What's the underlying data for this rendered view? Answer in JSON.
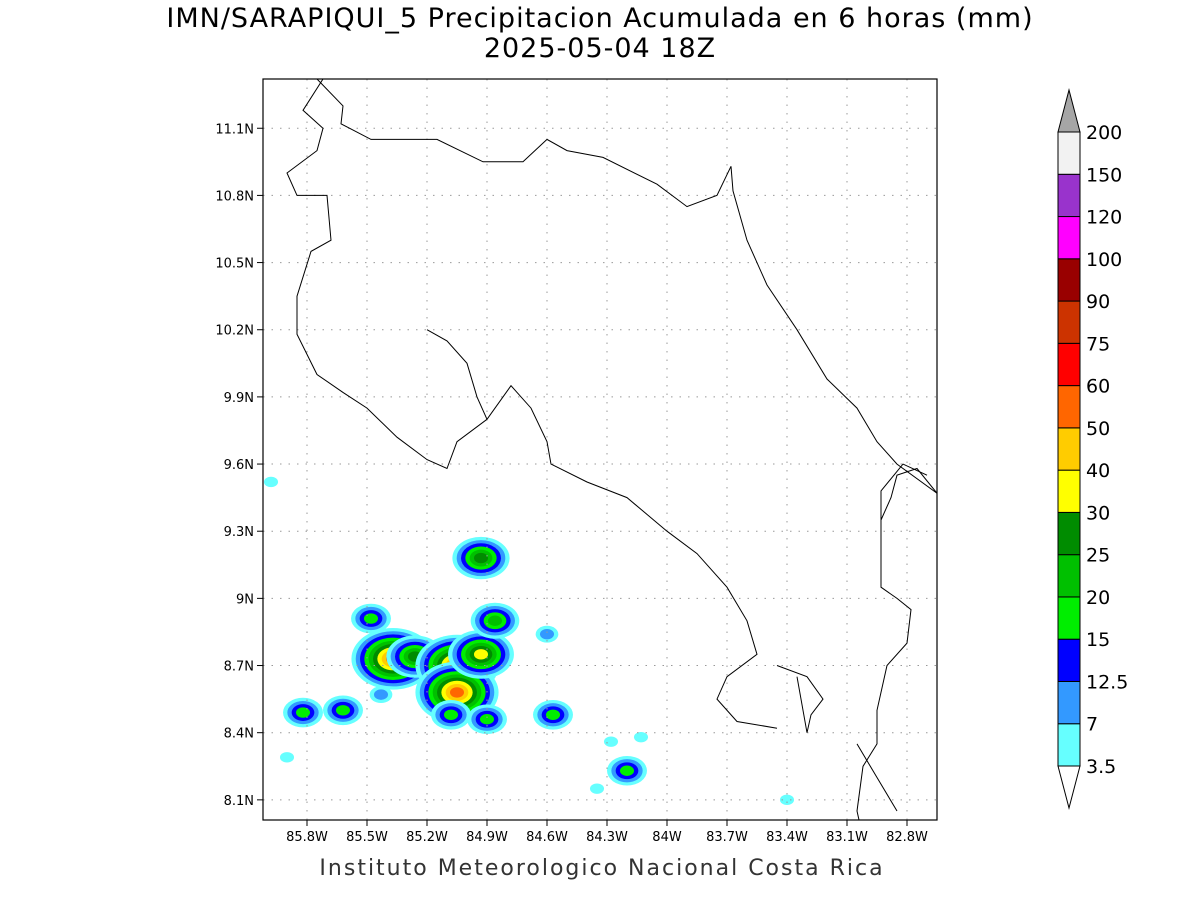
{
  "header": {
    "title": "IMN/SARAPIQUI_5 Precipitacion Acumulada en 6 horas (mm)",
    "subtitle": "2025-05-04 18Z"
  },
  "footer": {
    "credit": "Instituto Meteorologico Nacional Costa Rica"
  },
  "map": {
    "lon_range": [
      -86.02,
      -82.65
    ],
    "lat_range": [
      8.01,
      11.32
    ],
    "x_ticks": [
      "85.8W",
      "85.5W",
      "85.2W",
      "84.9W",
      "84.6W",
      "84.3W",
      "84W",
      "83.7W",
      "83.4W",
      "83.1W",
      "82.8W"
    ],
    "x_tick_values": [
      -85.8,
      -85.5,
      -85.2,
      -84.9,
      -84.6,
      -84.3,
      -84.0,
      -83.7,
      -83.4,
      -83.1,
      -82.8
    ],
    "y_ticks": [
      "8.1N",
      "8.4N",
      "8.7N",
      "9N",
      "9.3N",
      "9.6N",
      "9.9N",
      "10.2N",
      "10.5N",
      "10.8N",
      "11.1N"
    ],
    "y_tick_values": [
      8.1,
      8.4,
      8.7,
      9.0,
      9.3,
      9.6,
      9.9,
      10.2,
      10.5,
      10.8,
      11.1
    ],
    "grid": true,
    "coastline_color": "#000000"
  },
  "colorbar": {
    "labels": [
      "3.5",
      "7",
      "12.5",
      "15",
      "20",
      "25",
      "30",
      "40",
      "50",
      "60",
      "75",
      "90",
      "100",
      "120",
      "150",
      "200"
    ],
    "colors": [
      "#66ffff",
      "#3399ff",
      "#0000ff",
      "#00ee00",
      "#00c000",
      "#008c00",
      "#ffff00",
      "#ffcc00",
      "#ff6600",
      "#ff0000",
      "#cc3300",
      "#990000",
      "#ff00ff",
      "#9933cc",
      "#f2f2f2"
    ],
    "low_arrow_color": "#ffffff",
    "high_arrow_color": "#a6a6a6"
  },
  "precip_cells": [
    {
      "lon": -85.82,
      "lat": 8.49,
      "level": 4
    },
    {
      "lon": -85.62,
      "lat": 8.5,
      "level": 4
    },
    {
      "lon": -85.48,
      "lat": 8.91,
      "level": 4
    },
    {
      "lon": -85.37,
      "lat": 8.73,
      "level": 9
    },
    {
      "lon": -85.26,
      "lat": 8.74,
      "level": 6
    },
    {
      "lon": -85.05,
      "lat": 8.7,
      "level": 9
    },
    {
      "lon": -85.05,
      "lat": 8.58,
      "level": 9
    },
    {
      "lon": -84.93,
      "lat": 8.75,
      "level": 7
    },
    {
      "lon": -84.93,
      "lat": 9.18,
      "level": 6
    },
    {
      "lon": -84.86,
      "lat": 8.9,
      "level": 5
    },
    {
      "lon": -84.9,
      "lat": 8.46,
      "level": 4
    },
    {
      "lon": -85.08,
      "lat": 8.48,
      "level": 4
    },
    {
      "lon": -84.57,
      "lat": 8.48,
      "level": 4
    },
    {
      "lon": -84.2,
      "lat": 8.23,
      "level": 4
    },
    {
      "lon": -84.6,
      "lat": 8.84,
      "level": 2
    },
    {
      "lon": -84.35,
      "lat": 8.15,
      "level": 1
    },
    {
      "lon": -85.98,
      "lat": 9.52,
      "level": 1
    },
    {
      "lon": -85.43,
      "lat": 8.57,
      "level": 2
    },
    {
      "lon": -84.28,
      "lat": 8.36,
      "level": 1
    },
    {
      "lon": -84.13,
      "lat": 8.38,
      "level": 1
    },
    {
      "lon": -83.4,
      "lat": 8.1,
      "level": 1
    },
    {
      "lon": -85.9,
      "lat": 8.29,
      "level": 1
    }
  ]
}
